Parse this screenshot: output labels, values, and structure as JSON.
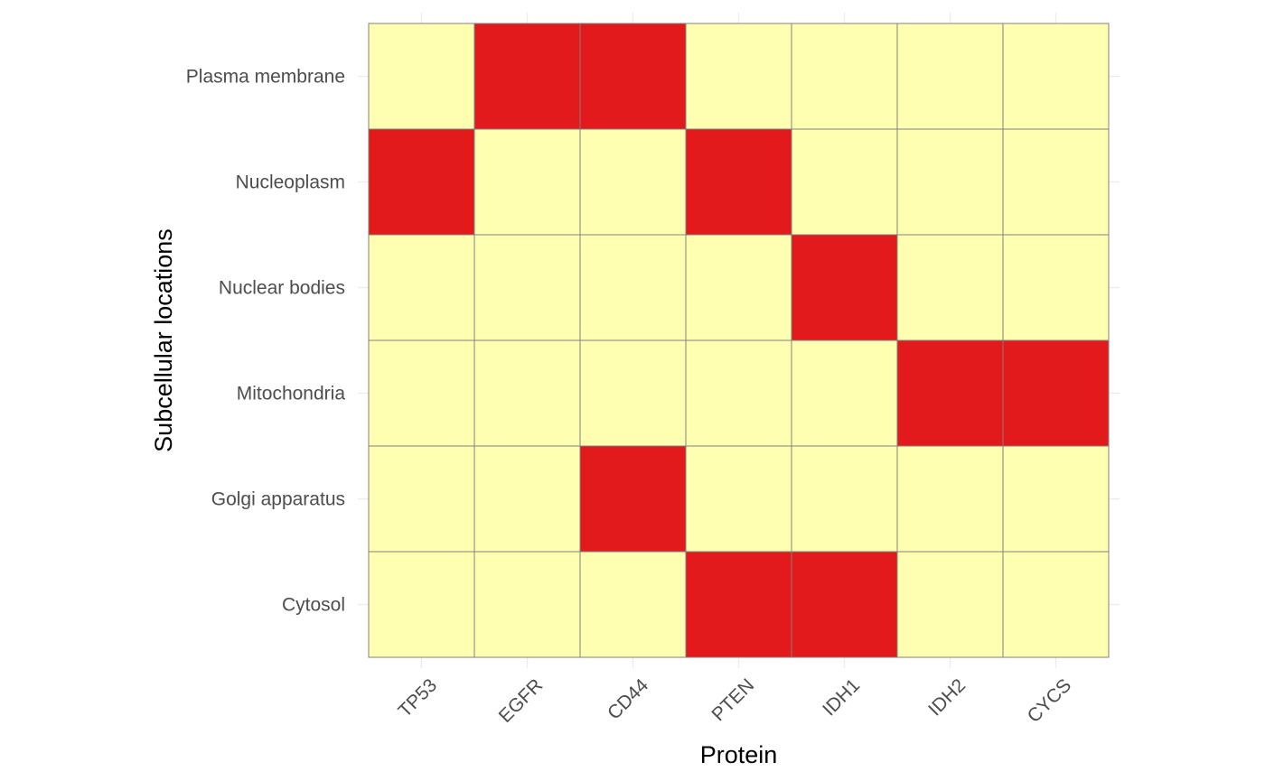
{
  "chart_data": {
    "type": "heatmap",
    "title": "",
    "xlabel": "Protein",
    "ylabel": "Subcellular locations",
    "x_categories": [
      "TP53",
      "EGFR",
      "CD44",
      "PTEN",
      "IDH1",
      "IDH2",
      "CYCS"
    ],
    "y_categories": [
      "Plasma membrane",
      "Nucleoplasm",
      "Nuclear bodies",
      "Mitochondria",
      "Golgi apparatus",
      "Cytosol"
    ],
    "values": [
      [
        0,
        1,
        1,
        0,
        0,
        0,
        0
      ],
      [
        1,
        0,
        0,
        1,
        0,
        0,
        0
      ],
      [
        0,
        0,
        0,
        0,
        1,
        0,
        0
      ],
      [
        0,
        0,
        0,
        0,
        0,
        1,
        1
      ],
      [
        0,
        0,
        1,
        0,
        0,
        0,
        0
      ],
      [
        0,
        0,
        0,
        1,
        1,
        0,
        0
      ]
    ],
    "colors": {
      "present": "#e31a1c",
      "absent": "#ffffb2",
      "cell_border": "#808080",
      "grid": "#ebebeb"
    },
    "grid": true,
    "legend": "none"
  }
}
